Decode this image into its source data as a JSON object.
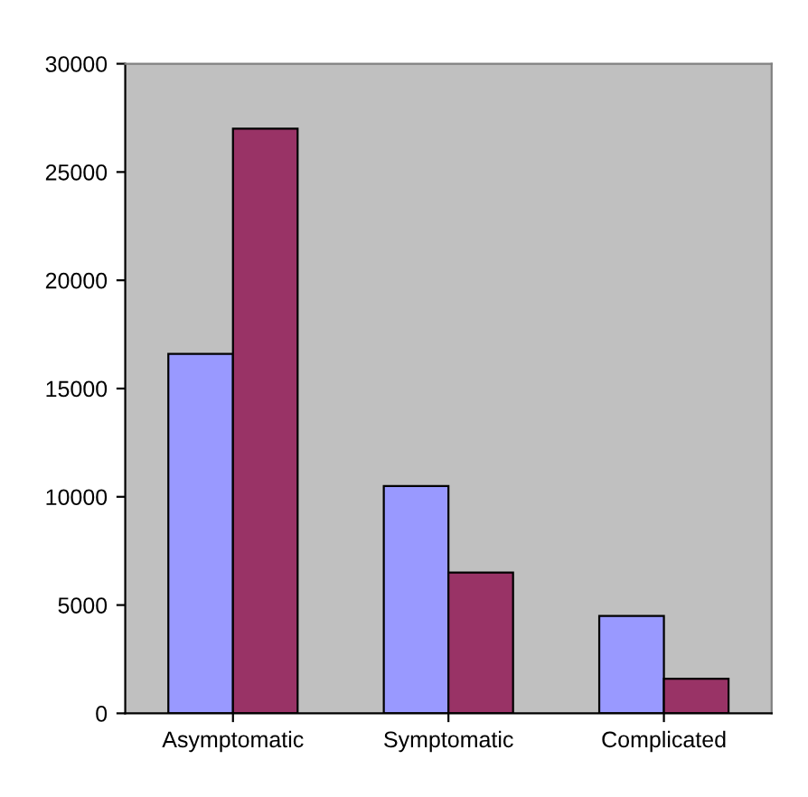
{
  "chart_data": {
    "type": "bar",
    "categories": [
      "Asymptomatic",
      "Symptomatic",
      "Complicated"
    ],
    "series": [
      {
        "color": "#9999ff",
        "values": [
          16600,
          10500,
          4500
        ]
      },
      {
        "color": "#993366",
        "values": [
          27000,
          6500,
          1600
        ]
      }
    ],
    "ylim": [
      0,
      30000
    ],
    "yticks": [
      0,
      5000,
      10000,
      15000,
      20000,
      25000,
      30000
    ],
    "grid": false,
    "legend": false
  }
}
